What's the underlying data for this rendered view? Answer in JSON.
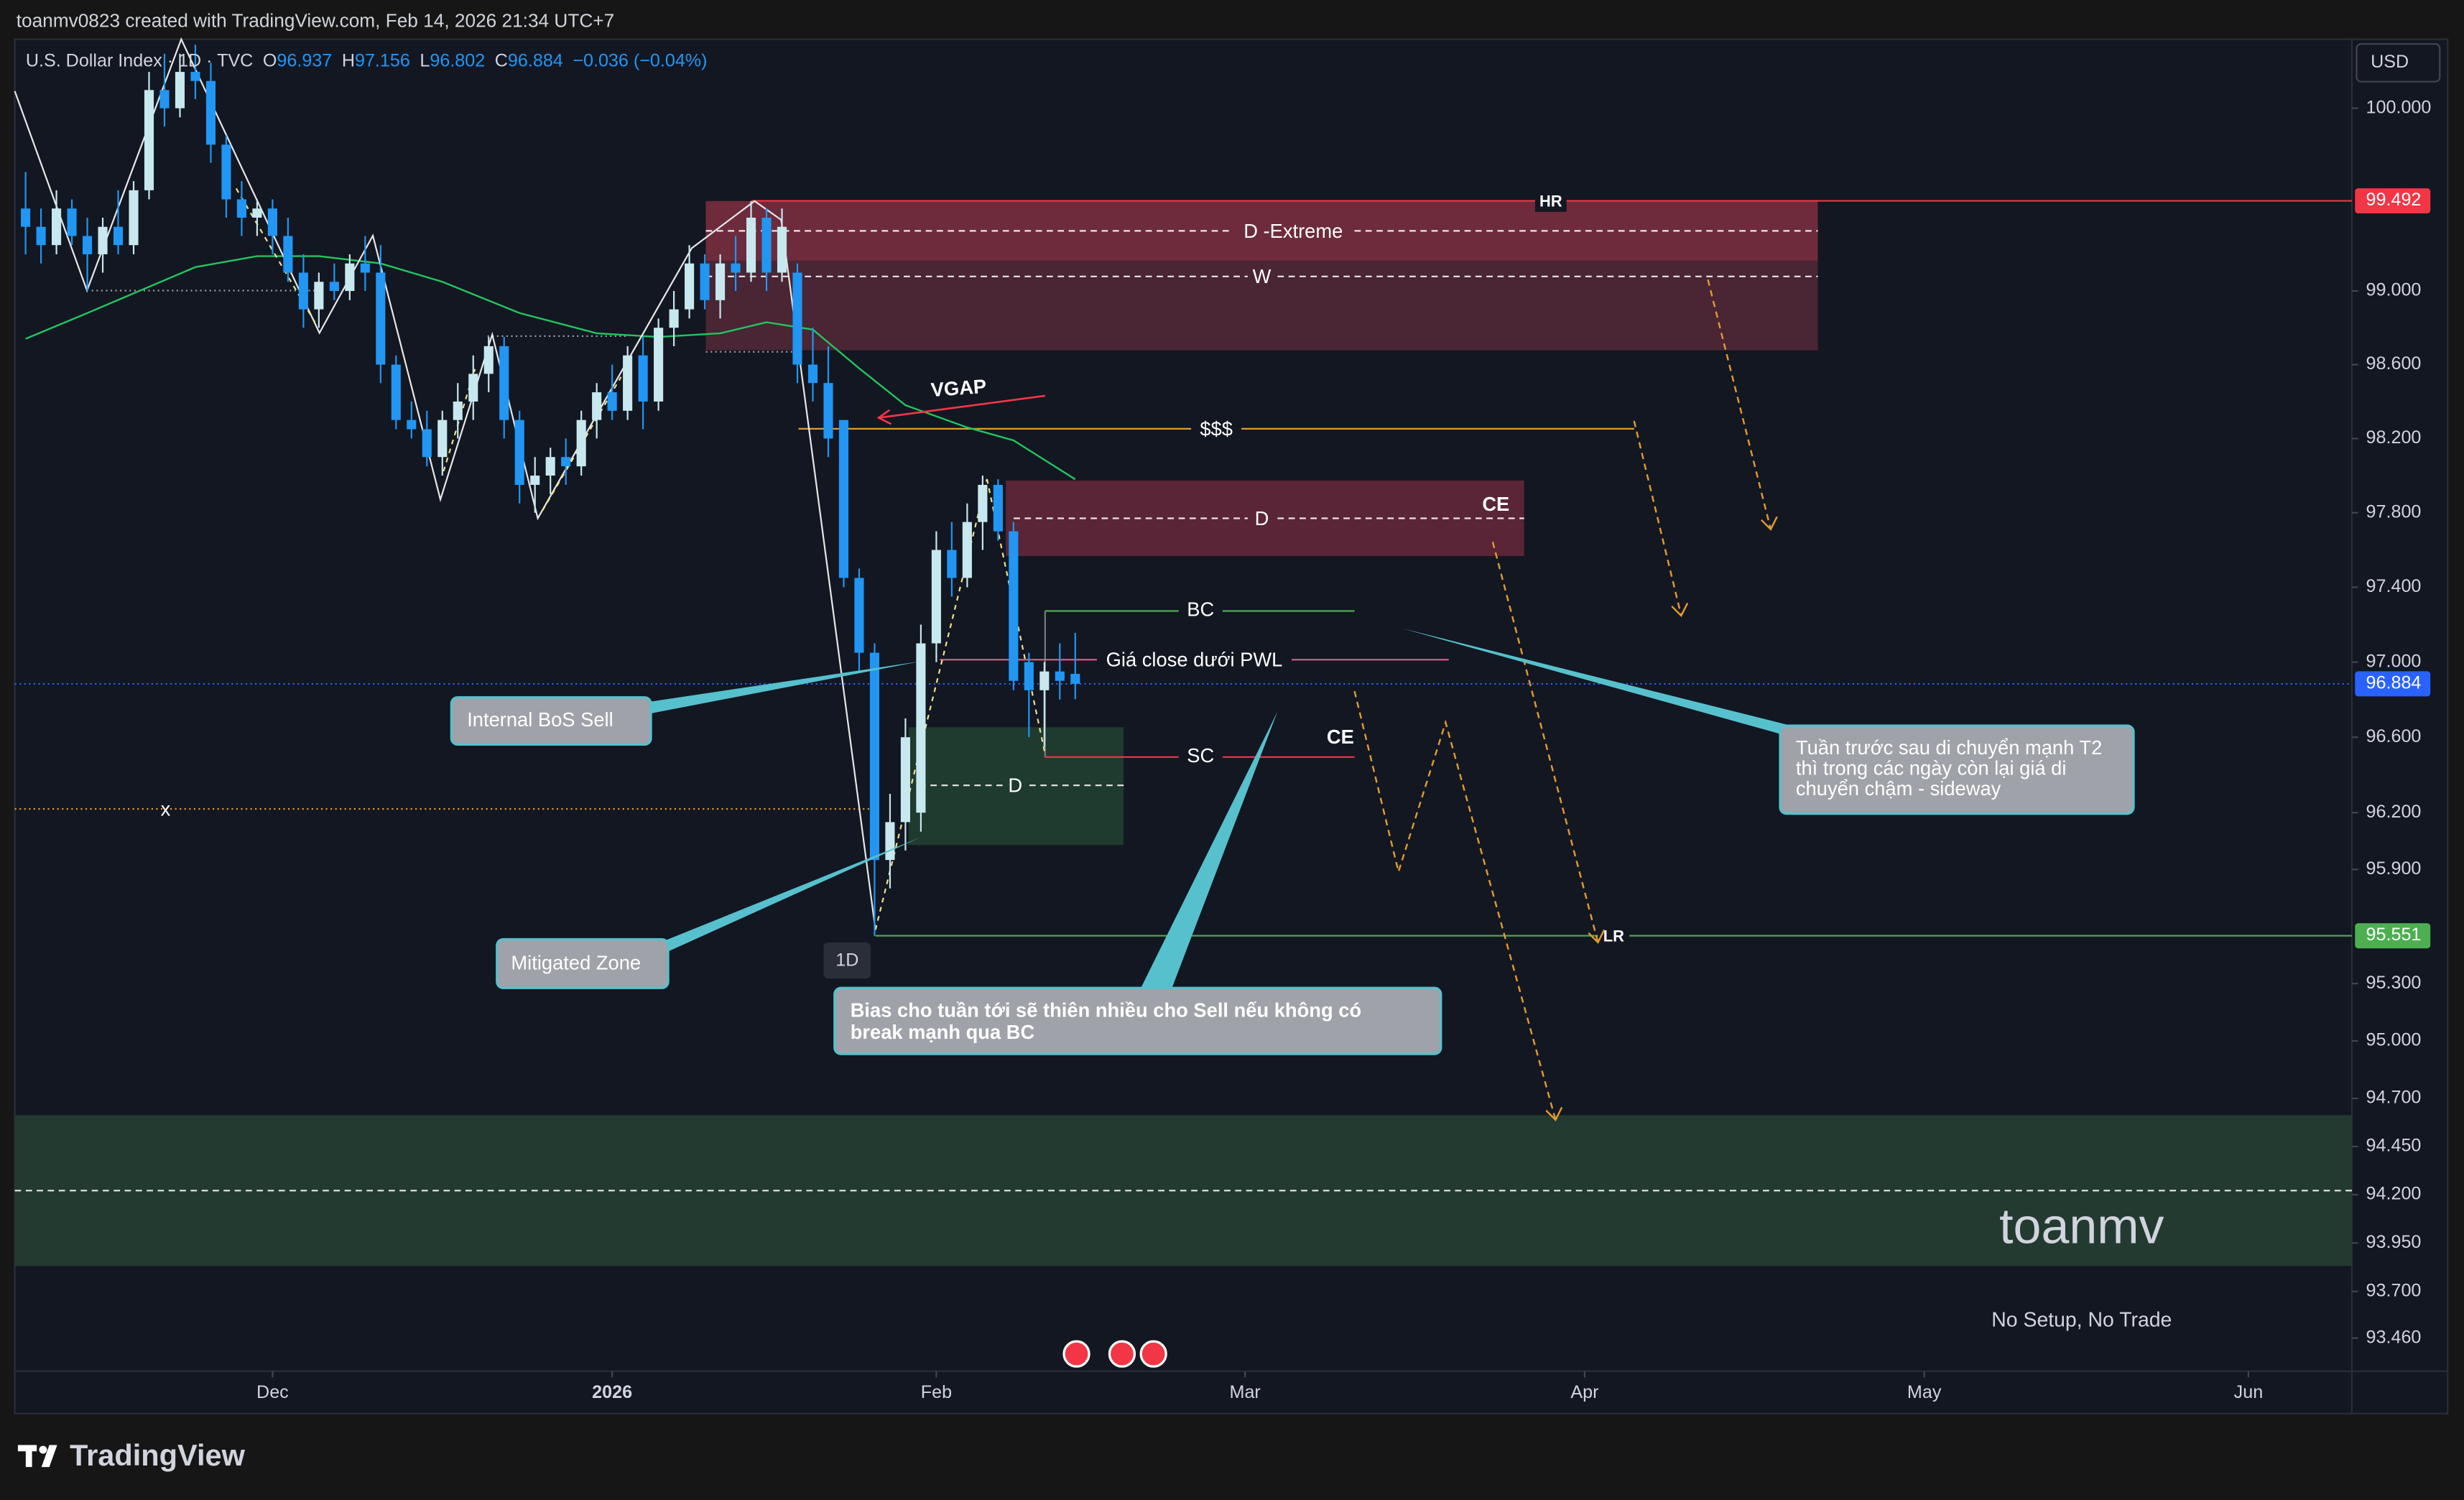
{
  "header": {
    "credit": "toanmv0823 created with TradingView.com, Feb 14, 2026 21:34 UTC+7",
    "symbol": "U.S. Dollar Index · 1D · TVC",
    "open_key": "O",
    "high_key": "H",
    "low_key": "L",
    "close_key": "C",
    "change": "−0.036 (−0.04%)",
    "currency": "USD",
    "interval_badge": "1D",
    "brand": "TradingView"
  },
  "chart_data": {
    "type": "candlestick",
    "log_scale": true,
    "grid": false,
    "up_color": "#c6e8ee",
    "down_color": "#2196f3",
    "candles": {
      "x": [
        0,
        1,
        2,
        3,
        4,
        5,
        6,
        7,
        8,
        9,
        10,
        11,
        12,
        13,
        14,
        15,
        16,
        17,
        18,
        19,
        20,
        21,
        22,
        23,
        24,
        25,
        26,
        27,
        28,
        29,
        30,
        31,
        32,
        33,
        34,
        35,
        36,
        37,
        38,
        39,
        40,
        41,
        42,
        43,
        44,
        45,
        46,
        47,
        48,
        49,
        50,
        51,
        52,
        53,
        54,
        55,
        56,
        57,
        58,
        59,
        60,
        61,
        62,
        63,
        64,
        65,
        66,
        67,
        68
      ],
      "open": [
        99.45,
        99.35,
        99.25,
        99.45,
        99.3,
        99.2,
        99.35,
        99.25,
        99.55,
        100.1,
        100.0,
        100.2,
        100.15,
        99.8,
        99.5,
        99.4,
        99.45,
        99.3,
        99.1,
        98.9,
        99.05,
        99.0,
        99.15,
        99.1,
        98.6,
        98.3,
        98.25,
        98.1,
        98.3,
        98.4,
        98.55,
        98.7,
        98.3,
        97.95,
        98.0,
        98.1,
        98.05,
        98.3,
        98.45,
        98.35,
        98.65,
        98.4,
        98.8,
        98.9,
        99.15,
        98.95,
        99.15,
        99.1,
        99.4,
        99.1,
        99.1,
        98.6,
        98.5,
        98.3,
        97.45,
        97.05,
        95.95,
        96.15,
        96.2,
        97.1,
        97.6,
        97.45,
        97.75,
        97.95,
        97.7,
        97.0,
        96.85,
        96.95,
        96.937
      ],
      "high": [
        99.65,
        99.45,
        99.55,
        99.5,
        99.4,
        99.4,
        99.55,
        99.6,
        100.2,
        100.3,
        100.3,
        100.35,
        100.25,
        99.85,
        99.6,
        99.5,
        99.5,
        99.4,
        99.2,
        99.1,
        99.15,
        99.2,
        99.3,
        99.25,
        98.65,
        98.4,
        98.35,
        98.35,
        98.5,
        98.65,
        98.75,
        98.75,
        98.35,
        98.1,
        98.15,
        98.2,
        98.35,
        98.5,
        98.6,
        98.7,
        98.75,
        98.85,
        99.0,
        99.25,
        99.2,
        99.2,
        99.3,
        99.49,
        99.45,
        99.45,
        99.15,
        98.8,
        98.7,
        98.3,
        97.5,
        97.1,
        96.3,
        96.7,
        97.2,
        97.7,
        97.75,
        97.85,
        98.0,
        97.98,
        97.75,
        97.05,
        97.0,
        97.1,
        97.156
      ],
      "low": [
        99.2,
        99.15,
        99.2,
        99.25,
        99.0,
        99.1,
        99.2,
        99.2,
        99.5,
        99.9,
        99.95,
        100.05,
        99.7,
        99.4,
        99.3,
        99.3,
        99.2,
        99.05,
        98.8,
        98.8,
        98.95,
        98.95,
        99.0,
        98.5,
        98.25,
        98.2,
        98.05,
        98.0,
        98.2,
        98.3,
        98.45,
        98.2,
        97.85,
        97.8,
        97.9,
        97.95,
        98.0,
        98.2,
        98.3,
        98.3,
        98.25,
        98.35,
        98.7,
        98.85,
        98.9,
        98.85,
        99.0,
        99.05,
        99.0,
        99.05,
        98.5,
        98.4,
        98.1,
        97.4,
        96.95,
        95.55,
        95.8,
        96.0,
        96.1,
        97.0,
        97.35,
        97.4,
        97.6,
        97.65,
        96.85,
        96.6,
        96.55,
        96.8,
        96.802
      ],
      "close": [
        99.35,
        99.25,
        99.45,
        99.3,
        99.2,
        99.35,
        99.25,
        99.55,
        100.1,
        100.0,
        100.2,
        100.15,
        99.8,
        99.5,
        99.4,
        99.45,
        99.3,
        99.1,
        98.9,
        99.05,
        99.0,
        99.15,
        99.1,
        98.6,
        98.3,
        98.25,
        98.1,
        98.3,
        98.4,
        98.55,
        98.7,
        98.3,
        97.95,
        98.0,
        98.1,
        98.05,
        98.3,
        98.45,
        98.35,
        98.65,
        98.4,
        98.8,
        98.9,
        99.15,
        98.95,
        99.15,
        99.1,
        99.4,
        99.1,
        99.35,
        98.6,
        98.5,
        98.2,
        97.45,
        97.05,
        95.95,
        96.15,
        96.6,
        97.1,
        97.6,
        97.45,
        97.75,
        97.95,
        97.7,
        96.9,
        96.85,
        96.95,
        96.9,
        96.884
      ]
    },
    "moving_average": {
      "color": "#22c55e",
      "x": [
        0,
        4,
        11,
        15,
        19,
        23,
        27,
        32,
        37,
        41,
        45,
        48,
        51,
        54,
        57,
        61,
        64,
        68
      ],
      "values": [
        98.74,
        98.88,
        99.13,
        99.19,
        99.19,
        99.15,
        99.05,
        98.88,
        98.77,
        98.75,
        98.77,
        98.83,
        98.79,
        98.58,
        98.38,
        98.26,
        98.19,
        97.98
      ]
    },
    "xlim": [
      -0.7,
      150.7
    ],
    "xticks": [
      {
        "value": 16,
        "label": "Dec"
      },
      {
        "value": 38,
        "label": "2026"
      },
      {
        "value": 59,
        "label": "Feb"
      },
      {
        "value": 79,
        "label": "Mar"
      },
      {
        "value": 101,
        "label": "Apr"
      },
      {
        "value": 123,
        "label": "May"
      },
      {
        "value": 144,
        "label": "Jun"
      }
    ],
    "ylim": [
      93.29,
      100.38
    ],
    "yticks": [
      {
        "value": 100,
        "label": "100.000"
      },
      {
        "value": 99,
        "label": "99.000"
      },
      {
        "value": 98.6,
        "label": "98.600"
      },
      {
        "value": 98.2,
        "label": "98.200"
      },
      {
        "value": 97.8,
        "label": "97.800"
      },
      {
        "value": 97.4,
        "label": "97.400"
      },
      {
        "value": 97,
        "label": "97.000"
      },
      {
        "value": 96.6,
        "label": "96.600"
      },
      {
        "value": 96.2,
        "label": "96.200"
      },
      {
        "value": 95.9,
        "label": "95.900"
      },
      {
        "value": 95.3,
        "label": "95.300"
      },
      {
        "value": 95,
        "label": "95.000"
      },
      {
        "value": 94.7,
        "label": "94.700"
      },
      {
        "value": 94.45,
        "label": "94.450"
      },
      {
        "value": 94.2,
        "label": "94.200"
      },
      {
        "value": 93.95,
        "label": "93.950"
      },
      {
        "value": 93.7,
        "label": "93.700"
      },
      {
        "value": 93.46,
        "label": "93.460"
      }
    ],
    "levels": [
      {
        "label": "HR",
        "value": 99.492,
        "color": "#f23645"
      },
      {
        "value": 96.884,
        "color": "#2962ff"
      },
      {
        "label": "LR",
        "value": 95.551,
        "color": "#4caf50"
      }
    ],
    "annotations": {
      "d_extreme": "D -Extreme",
      "w": "W",
      "vgap": "VGAP",
      "liquidity": "$$$",
      "d_upper": "D",
      "ce_upper": "CE",
      "bc": "BC",
      "pwl": "Giá close dưới PWL",
      "sc": "SC",
      "d_lower": "D",
      "ce_lower": "CE",
      "x_mark": "x",
      "internal_bos": "Internal BoS Sell",
      "mitigated": "Mitigated Zone",
      "bias": [
        "Bias cho tuần tới sẽ thiên nhiều cho Sell nếu không có",
        "break mạnh qua BC"
      ],
      "sideway": [
        "Tuần trước sau di chuyển mạnh T2",
        "thì trong các ngày còn lại giá di",
        "chuyển chậm - sideway"
      ],
      "watermark": "toanmv",
      "no_setup": "No Setup, No Trade"
    }
  }
}
